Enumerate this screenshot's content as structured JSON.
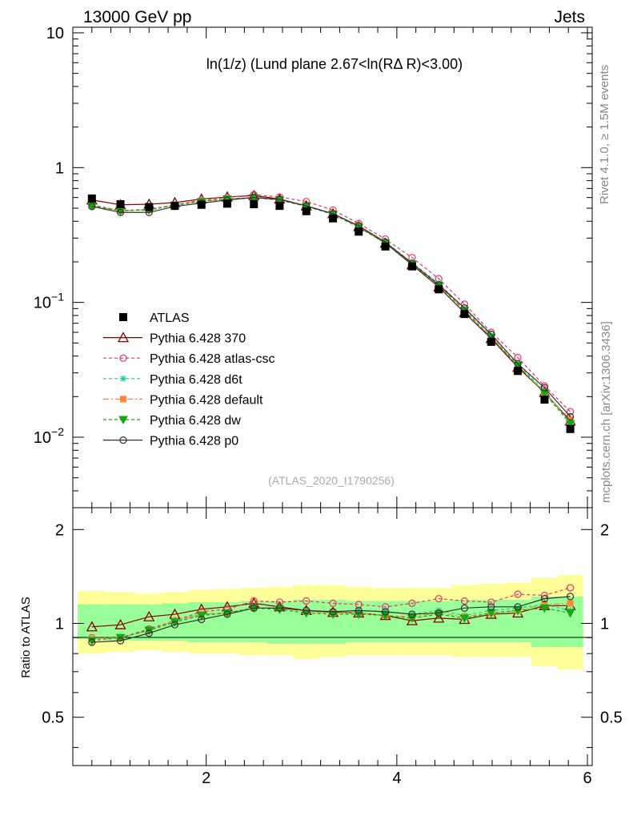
{
  "header": {
    "left": "13000 GeV pp",
    "right": "Jets"
  },
  "side_text": {
    "rivet": "Rivet 4.1.0, ≥ 1.5M events",
    "mcplots": "mcplots.cern.ch [arXiv:1306.3436]"
  },
  "chart_data": {
    "type": "line",
    "title": "ln(1/z) (Lund plane 2.67<ln(RΔ R)<3.00)",
    "watermark": "(ATLAS_2020_I1790256)",
    "xlabel": "",
    "ylabel_ratio": "Ratio to ATLAS",
    "yscale": "log",
    "xlim": [
      0.6,
      6.05
    ],
    "ylim": [
      0.003,
      11
    ],
    "ratio_ylim": [
      0.35,
      2.35
    ],
    "x": [
      0.8,
      1.1,
      1.4,
      1.67,
      1.95,
      2.22,
      2.5,
      2.77,
      3.05,
      3.33,
      3.6,
      3.88,
      4.16,
      4.44,
      4.71,
      4.99,
      5.27,
      5.55,
      5.82
    ],
    "main_ticks_major": [
      {
        "value": 0.01,
        "label": "10",
        "exp": "−2"
      },
      {
        "value": 0.1,
        "label": "10",
        "exp": "−1"
      },
      {
        "value": 1,
        "label": "1",
        "exp": ""
      },
      {
        "value": 10,
        "label": "10",
        "exp": ""
      }
    ],
    "ratio_ticks": [
      {
        "value": 0.5,
        "label": "0.5"
      },
      {
        "value": 1,
        "label": "1"
      },
      {
        "value": 2,
        "label": "2"
      }
    ],
    "x_ticks": [
      {
        "value": 2,
        "label": "2"
      },
      {
        "value": 4,
        "label": "4"
      },
      {
        "value": 6,
        "label": "6"
      }
    ],
    "data": {
      "name": "ATLAS",
      "values": [
        0.59,
        0.535,
        0.51,
        0.52,
        0.53,
        0.54,
        0.535,
        0.52,
        0.475,
        0.42,
        0.335,
        0.26,
        0.185,
        0.125,
        0.082,
        0.051,
        0.031,
        0.019,
        0.0115
      ]
    },
    "bands": {
      "inner": [
        [
          0.89,
          1.15
        ],
        [
          0.88,
          1.15
        ],
        [
          0.88,
          1.15
        ],
        [
          0.88,
          1.16
        ],
        [
          0.87,
          1.17
        ],
        [
          0.87,
          1.17
        ],
        [
          0.87,
          1.18
        ],
        [
          0.86,
          1.18
        ],
        [
          0.86,
          1.19
        ],
        [
          0.86,
          1.19
        ],
        [
          0.87,
          1.18
        ],
        [
          0.87,
          1.18
        ],
        [
          0.87,
          1.18
        ],
        [
          0.87,
          1.18
        ],
        [
          0.87,
          1.19
        ],
        [
          0.87,
          1.19
        ],
        [
          0.87,
          1.19
        ],
        [
          0.84,
          1.22
        ],
        [
          0.84,
          1.22
        ]
      ],
      "outer": [
        [
          0.8,
          1.27
        ],
        [
          0.81,
          1.26
        ],
        [
          0.82,
          1.25
        ],
        [
          0.81,
          1.26
        ],
        [
          0.8,
          1.28
        ],
        [
          0.8,
          1.29
        ],
        [
          0.79,
          1.3
        ],
        [
          0.79,
          1.31
        ],
        [
          0.77,
          1.33
        ],
        [
          0.78,
          1.33
        ],
        [
          0.79,
          1.31
        ],
        [
          0.79,
          1.3
        ],
        [
          0.79,
          1.3
        ],
        [
          0.79,
          1.3
        ],
        [
          0.78,
          1.33
        ],
        [
          0.78,
          1.34
        ],
        [
          0.78,
          1.35
        ],
        [
          0.73,
          1.4
        ],
        [
          0.71,
          1.43
        ]
      ]
    },
    "series": [
      {
        "name": "Pythia 6.428 370",
        "color": "#8b0000",
        "dash": "",
        "marker": "triangle-open",
        "values": [
          0.575,
          0.53,
          0.535,
          0.55,
          0.585,
          0.605,
          0.62,
          0.585,
          0.52,
          0.455,
          0.365,
          0.275,
          0.19,
          0.13,
          0.084,
          0.054,
          0.033,
          0.0215,
          0.0132
        ],
        "ratio": [
          0.975,
          0.99,
          1.05,
          1.07,
          1.11,
          1.13,
          1.16,
          1.13,
          1.1,
          1.085,
          1.08,
          1.06,
          1.02,
          1.04,
          1.03,
          1.07,
          1.08,
          1.14,
          1.14
        ]
      },
      {
        "name": "Pythia 6.428 atlas-csc",
        "color": "#ee3366",
        "dash": "4,3",
        "marker": "circle-open",
        "values": [
          0.53,
          0.48,
          0.49,
          0.53,
          0.575,
          0.6,
          0.63,
          0.605,
          0.56,
          0.485,
          0.385,
          0.295,
          0.215,
          0.15,
          0.097,
          0.06,
          0.039,
          0.024,
          0.0155
        ],
        "ratio": [
          0.9,
          0.9,
          0.96,
          1.02,
          1.09,
          1.11,
          1.18,
          1.17,
          1.18,
          1.16,
          1.15,
          1.13,
          1.16,
          1.2,
          1.18,
          1.17,
          1.24,
          1.23,
          1.3
        ]
      },
      {
        "name": "Pythia 6.428 d6t",
        "color": "#22cc99",
        "dash": "4,3",
        "marker": "star",
        "values": [
          0.525,
          0.48,
          0.485,
          0.53,
          0.565,
          0.585,
          0.6,
          0.58,
          0.52,
          0.455,
          0.37,
          0.28,
          0.198,
          0.138,
          0.09,
          0.057,
          0.035,
          0.022,
          0.0127
        ],
        "ratio": [
          0.89,
          0.9,
          0.95,
          1.02,
          1.07,
          1.08,
          1.12,
          1.12,
          1.1,
          1.09,
          1.1,
          1.09,
          1.07,
          1.1,
          1.06,
          1.1,
          1.12,
          1.15,
          1.1
        ]
      },
      {
        "name": "Pythia 6.428 default",
        "color": "#ff8833",
        "dash": "7,3,2,3",
        "marker": "square",
        "values": [
          0.52,
          0.48,
          0.485,
          0.53,
          0.565,
          0.585,
          0.6,
          0.58,
          0.52,
          0.455,
          0.365,
          0.278,
          0.195,
          0.135,
          0.088,
          0.055,
          0.034,
          0.0215,
          0.0135
        ],
        "ratio": [
          0.89,
          0.9,
          0.95,
          1.02,
          1.07,
          1.08,
          1.12,
          1.12,
          1.09,
          1.08,
          1.08,
          1.06,
          1.05,
          1.08,
          1.05,
          1.08,
          1.1,
          1.15,
          1.16
        ]
      },
      {
        "name": "Pythia 6.428 dw",
        "color": "#11aa11",
        "dash": "4,3",
        "marker": "triangle-down",
        "values": [
          0.52,
          0.478,
          0.485,
          0.525,
          0.56,
          0.585,
          0.598,
          0.575,
          0.515,
          0.45,
          0.36,
          0.275,
          0.193,
          0.134,
          0.087,
          0.055,
          0.034,
          0.0212,
          0.0126
        ],
        "ratio": [
          0.88,
          0.9,
          0.95,
          1.01,
          1.06,
          1.08,
          1.12,
          1.11,
          1.08,
          1.07,
          1.07,
          1.06,
          1.04,
          1.07,
          1.04,
          1.08,
          1.1,
          1.12,
          1.08
        ]
      },
      {
        "name": "Pythia 6.428 p0",
        "color": "#333333",
        "dash": "",
        "marker": "circle-open",
        "values": [
          0.515,
          0.465,
          0.465,
          0.515,
          0.545,
          0.575,
          0.6,
          0.58,
          0.52,
          0.455,
          0.37,
          0.28,
          0.195,
          0.135,
          0.091,
          0.058,
          0.035,
          0.0233,
          0.0142
        ],
        "ratio": [
          0.87,
          0.88,
          0.93,
          0.99,
          1.03,
          1.07,
          1.12,
          1.12,
          1.1,
          1.09,
          1.1,
          1.09,
          1.07,
          1.08,
          1.12,
          1.13,
          1.13,
          1.2,
          1.22
        ]
      }
    ]
  }
}
